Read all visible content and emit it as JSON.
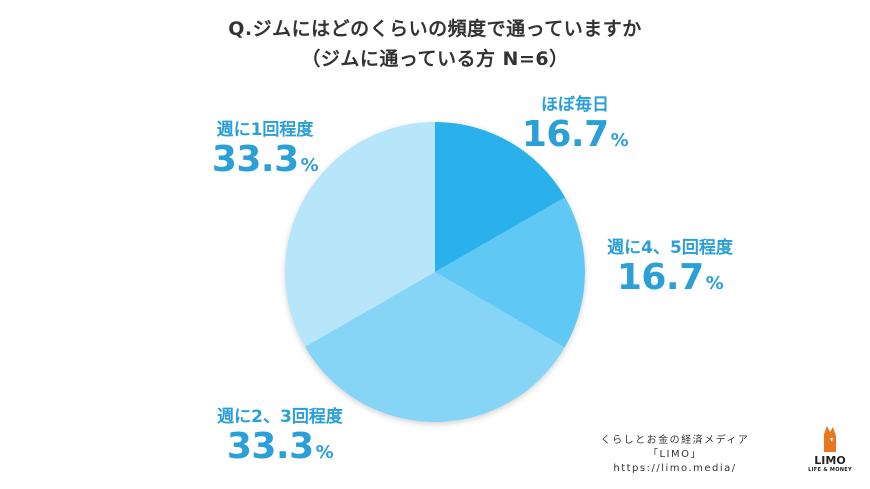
{
  "title_line1": "Q.ジムにはどのくらいの頻度で通っていますか",
  "title_line2": "（ジムに通っている方 N=6）",
  "chart_data": {
    "type": "pie",
    "title": "Q.ジムにはどのくらいの頻度で通っていますか",
    "subtitle": "（ジムに通っている方 N=6）",
    "categories": [
      "ほぼ毎日",
      "週に4、5回程度",
      "週に2、3回程度",
      "週に1回程度"
    ],
    "values": [
      16.7,
      16.7,
      33.3,
      33.3
    ],
    "value_labels": [
      "16.7",
      "16.7",
      "33.3",
      "33.3"
    ],
    "unit": "%",
    "colors": [
      "#2ab0ea",
      "#5fc8f5",
      "#86d5f7",
      "#b7e5fa"
    ],
    "start_angle_deg": 0,
    "direction": "clockwise"
  },
  "credit": {
    "line1": "くらしとお金の経済メディア",
    "line2": "「LIMO」",
    "line3": "https://limo.media/"
  },
  "logo": {
    "name": "LIMO",
    "sub": "LIFE & MONEY",
    "icon": "fox-logo-icon",
    "color": "#e87722"
  }
}
